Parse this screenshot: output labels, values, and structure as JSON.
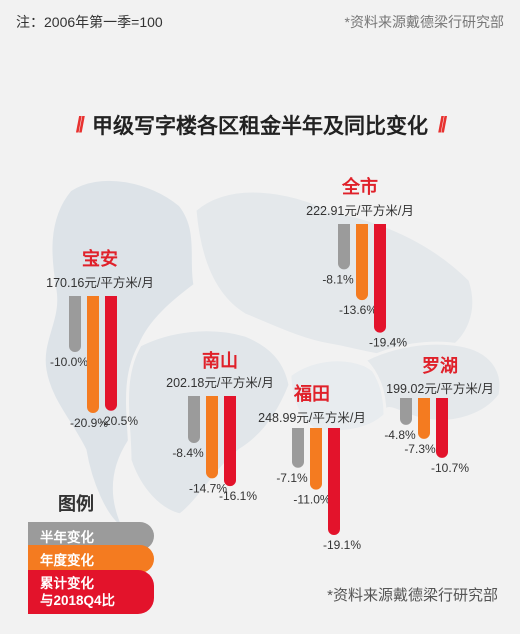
{
  "note": "注：2006年第一季=100",
  "source": "*资料来源戴德梁行研究部",
  "title": "甲级写字楼各区租金半年及同比变化",
  "title_mark": "//",
  "legend": {
    "title": "图例",
    "items": [
      {
        "label": "半年变化",
        "color": "#9b9b9b"
      },
      {
        "label": "年度变化",
        "color": "#f47b20"
      },
      {
        "label_line1": "累计变化",
        "label_line2": "与2018Q4比",
        "color": "#e3132b"
      }
    ]
  },
  "chart_data": {
    "type": "bar",
    "unit": "%",
    "series": [
      {
        "name": "半年变化",
        "color": "#9b9b9b"
      },
      {
        "name": "年度变化",
        "color": "#f47b20"
      },
      {
        "name": "累计变化 与2018Q4比",
        "color": "#e3132b"
      }
    ],
    "districts": [
      {
        "key": "baoan",
        "name": "宝安",
        "rent": "170.16元/平方米/月",
        "values": [
          -10.0,
          -20.9,
          -20.5
        ],
        "labels": [
          "-10.0%",
          "-20.9%",
          "-20.5%"
        ]
      },
      {
        "key": "quanshi",
        "name": "全市",
        "rent": "222.91元/平方米/月",
        "values": [
          -8.1,
          -13.6,
          -19.4
        ],
        "labels": [
          "-8.1%",
          "-13.6%",
          "-19.4%"
        ]
      },
      {
        "key": "nanshan",
        "name": "南山",
        "rent": "202.18元/平方米/月",
        "values": [
          -8.4,
          -14.7,
          -16.1
        ],
        "labels": [
          "-8.4%",
          "-14.7%",
          "-16.1%"
        ]
      },
      {
        "key": "futian",
        "name": "福田",
        "rent": "248.99元/平方米/月",
        "values": [
          -7.1,
          -11.0,
          -19.1
        ],
        "labels": [
          "-7.1%",
          "-11.0%",
          "-19.1%"
        ]
      },
      {
        "key": "luohu",
        "name": "罗湖",
        "rent": "199.02元/平方米/月",
        "values": [
          -4.8,
          -7.3,
          -10.7
        ],
        "labels": [
          "-4.8%",
          "-7.3%",
          "-10.7%"
        ]
      }
    ]
  }
}
